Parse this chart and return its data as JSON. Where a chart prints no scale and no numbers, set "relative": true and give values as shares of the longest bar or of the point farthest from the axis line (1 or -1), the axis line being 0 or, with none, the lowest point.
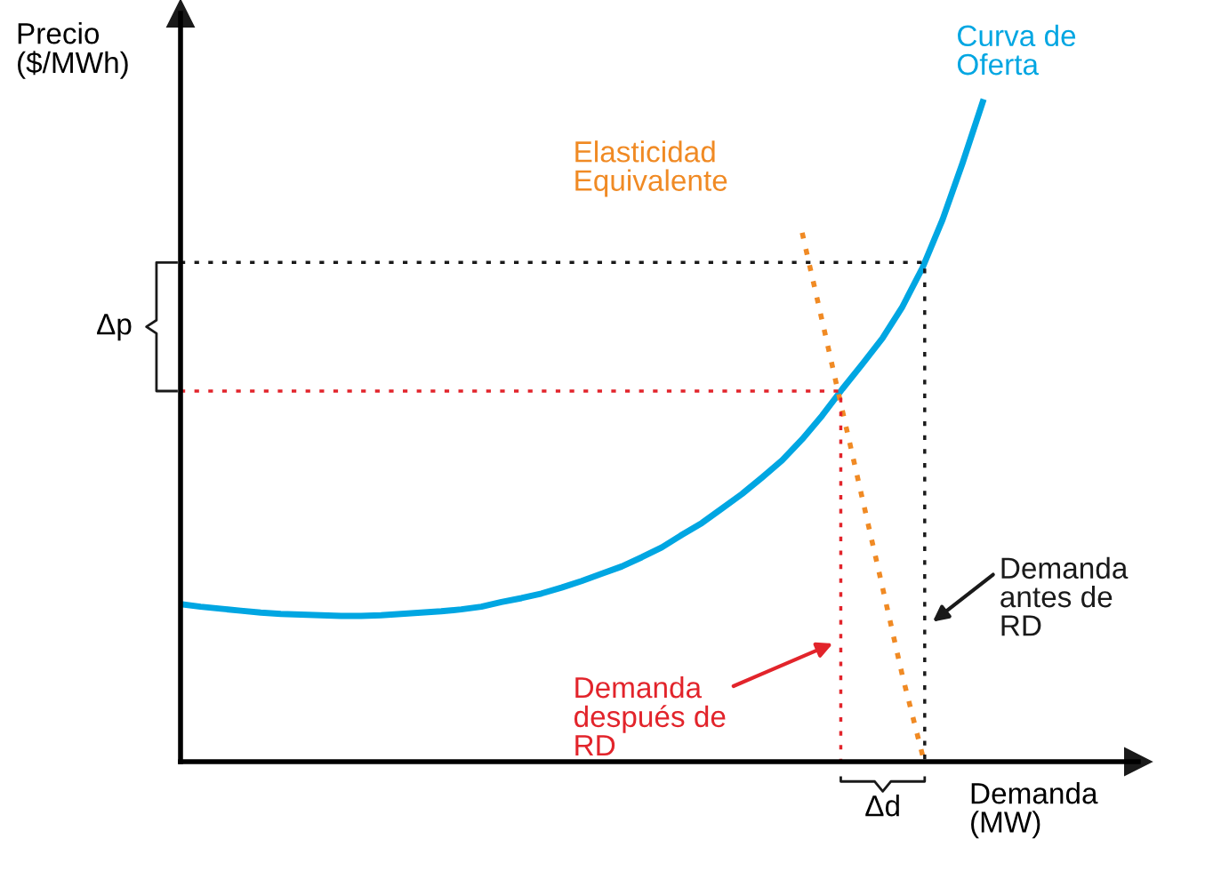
{
  "chart_data": {
    "type": "line",
    "relative": true,
    "xlabel": "Demanda\n(MW)",
    "ylabel": "Precio\n($/MWh)",
    "annotations": [
      "Δp",
      "Δd"
    ],
    "categories": [
      null,
      null,
      null,
      null,
      null,
      null,
      null,
      null,
      null,
      null,
      null,
      null,
      null,
      null,
      null,
      null,
      null,
      null,
      null,
      null,
      null,
      null,
      null,
      null,
      null,
      null,
      null,
      null,
      null,
      null,
      null,
      null,
      null,
      null,
      null,
      null,
      null,
      null,
      null,
      null,
      null
    ],
    "series": [
      {
        "name": "Curva de\nOferta",
        "color": "#00a6e2",
        "values": [
          0.239,
          0.235,
          0.232,
          0.229,
          0.226,
          0.224,
          0.223,
          0.222,
          0.221,
          0.221,
          0.222,
          0.224,
          0.226,
          0.228,
          0.231,
          0.235,
          0.242,
          0.248,
          0.255,
          0.264,
          0.274,
          0.285,
          0.296,
          0.31,
          0.325,
          0.344,
          0.362,
          0.384,
          0.406,
          0.431,
          0.457,
          0.489,
          0.525,
          0.565,
          0.603,
          0.642,
          0.69,
          0.749,
          0.822,
          0.908,
          1.0
        ]
      },
      {
        "name": "Elasticidad\nEquivalente",
        "color": "#f08a24",
        "line_style": "dashed",
        "values": [
          null,
          null,
          null,
          null,
          null,
          null,
          null,
          null,
          null,
          null,
          null,
          null,
          null,
          null,
          null,
          null,
          null,
          null,
          null,
          null,
          null,
          null,
          null,
          null,
          null,
          null,
          null,
          null,
          null,
          null,
          null,
          0.802,
          0.668,
          0.533,
          0.399,
          0.265,
          0.13,
          0.01,
          null,
          null,
          null
        ]
      }
    ],
    "ref_lines": [
      {
        "axis": "y",
        "value": 0.757,
        "label": "Demanda\nantes de\nRD",
        "color": "#1a1a1a",
        "line_style": "dotted"
      },
      {
        "axis": "y",
        "value": 0.562,
        "label": "Demanda\ndespués de\nRD",
        "color": "#e2242b",
        "line_style": "dotted"
      }
    ]
  }
}
